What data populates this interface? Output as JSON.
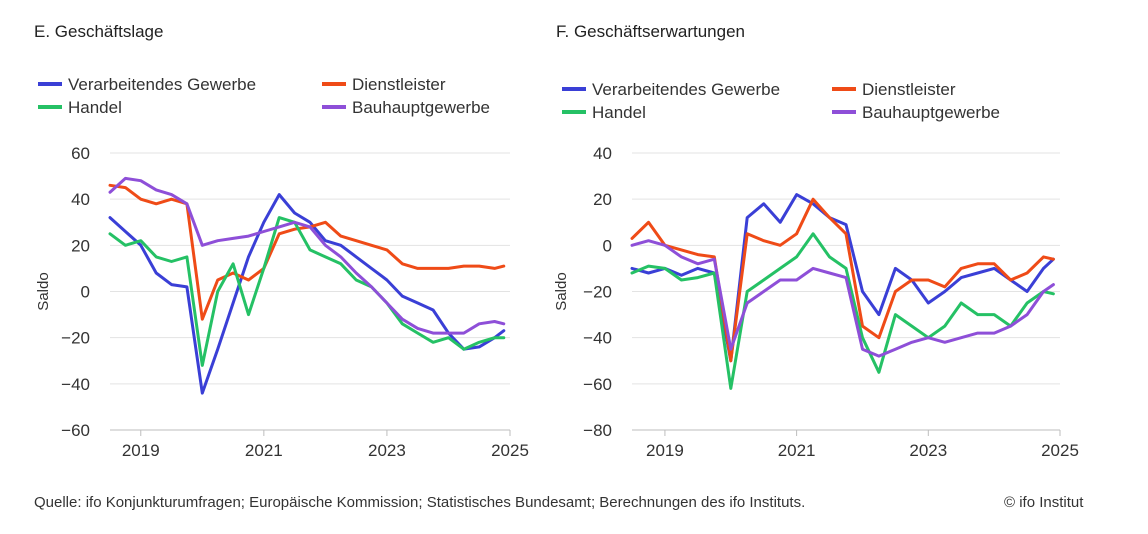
{
  "footer": {
    "source": "Quelle: ifo Konjunkturumfragen; Europäische Kommission; Statistisches Bundesamt; Berechnungen des ifo Instituts.",
    "copyright": "© ifo Institut"
  },
  "colors": {
    "verarbeitendes": "#3a3fd6",
    "dienstleister": "#ef4b17",
    "handel": "#25c165",
    "bau": "#8e4fd8",
    "grid": "#e3e3e3"
  },
  "chart_data": [
    {
      "id": "E",
      "type": "line",
      "title": "E. Geschäftslage",
      "xlabel": "",
      "ylabel": "Saldo",
      "xlim": [
        2018.5,
        2025.0
      ],
      "ylim": [
        -60,
        60
      ],
      "yticks": [
        60,
        40,
        20,
        0,
        -20,
        -40,
        -60
      ],
      "xticks": [
        2019,
        2021,
        2023,
        2025
      ],
      "xtick_labels": [
        "2019",
        "2021",
        "2023",
        "2025"
      ],
      "grid": true,
      "legend_position": "top",
      "legend": [
        "Verarbeitendes Gewerbe",
        "Dienstleister",
        "Handel",
        "Bauhauptgewerbe"
      ],
      "x": [
        2018.5,
        2018.75,
        2019.0,
        2019.25,
        2019.5,
        2019.75,
        2020.0,
        2020.25,
        2020.5,
        2020.75,
        2021.0,
        2021.25,
        2021.5,
        2021.75,
        2022.0,
        2022.25,
        2022.5,
        2022.75,
        2023.0,
        2023.25,
        2023.5,
        2023.75,
        2024.0,
        2024.25,
        2024.5,
        2024.75,
        2024.9
      ],
      "series": [
        {
          "name": "Verarbeitendes Gewerbe",
          "color_key": "verarbeitendes",
          "values": [
            32,
            26,
            20,
            8,
            3,
            2,
            -44,
            -25,
            -5,
            15,
            30,
            42,
            34,
            30,
            22,
            20,
            15,
            10,
            5,
            -2,
            -5,
            -8,
            -18,
            -25,
            -24,
            -20,
            -17
          ]
        },
        {
          "name": "Dienstleister",
          "color_key": "dienstleister",
          "values": [
            46,
            45,
            40,
            38,
            40,
            38,
            -12,
            5,
            8,
            5,
            10,
            25,
            27,
            28,
            30,
            24,
            22,
            20,
            18,
            12,
            10,
            10,
            10,
            11,
            11,
            10,
            11
          ]
        },
        {
          "name": "Handel",
          "color_key": "handel",
          "values": [
            25,
            20,
            22,
            15,
            13,
            15,
            -32,
            0,
            12,
            -10,
            10,
            32,
            30,
            18,
            15,
            12,
            5,
            2,
            -5,
            -14,
            -18,
            -22,
            -20,
            -25,
            -22,
            -20,
            -20
          ]
        },
        {
          "name": "Bauhauptgewerbe",
          "color_key": "bau",
          "values": [
            43,
            49,
            48,
            44,
            42,
            38,
            20,
            22,
            23,
            24,
            26,
            28,
            30,
            28,
            20,
            15,
            8,
            2,
            -5,
            -12,
            -16,
            -18,
            -18,
            -18,
            -14,
            -13,
            -14
          ]
        }
      ]
    },
    {
      "id": "F",
      "type": "line",
      "title": "F. Geschäftserwartungen",
      "xlabel": "",
      "ylabel": "Saldo",
      "xlim": [
        2018.5,
        2025.0
      ],
      "ylim": [
        -80,
        40
      ],
      "yticks": [
        40,
        20,
        0,
        -20,
        -40,
        -60,
        -80
      ],
      "xticks": [
        2019,
        2021,
        2023,
        2025
      ],
      "xtick_labels": [
        "2019",
        "2021",
        "2023",
        "2025"
      ],
      "grid": true,
      "legend_position": "top",
      "legend": [
        "Verarbeitendes Gewerbe",
        "Dienstleister",
        "Handel",
        "Bauhauptgewerbe"
      ],
      "x": [
        2018.5,
        2018.75,
        2019.0,
        2019.25,
        2019.5,
        2019.75,
        2020.0,
        2020.25,
        2020.5,
        2020.75,
        2021.0,
        2021.25,
        2021.5,
        2021.75,
        2022.0,
        2022.25,
        2022.5,
        2022.75,
        2023.0,
        2023.25,
        2023.5,
        2023.75,
        2024.0,
        2024.25,
        2024.5,
        2024.75,
        2024.9
      ],
      "series": [
        {
          "name": "Verarbeitendes Gewerbe",
          "color_key": "verarbeitendes",
          "values": [
            -10,
            -12,
            -10,
            -13,
            -10,
            -12,
            -50,
            12,
            18,
            10,
            22,
            18,
            12,
            9,
            -20,
            -30,
            -10,
            -15,
            -25,
            -20,
            -14,
            -12,
            -10,
            -15,
            -20,
            -10,
            -6
          ]
        },
        {
          "name": "Dienstleister",
          "color_key": "dienstleister",
          "values": [
            3,
            10,
            0,
            -2,
            -4,
            -5,
            -50,
            5,
            2,
            0,
            5,
            20,
            12,
            5,
            -35,
            -40,
            -20,
            -15,
            -15,
            -18,
            -10,
            -8,
            -8,
            -15,
            -12,
            -5,
            -6
          ]
        },
        {
          "name": "Handel",
          "color_key": "handel",
          "values": [
            -12,
            -9,
            -10,
            -15,
            -14,
            -12,
            -62,
            -20,
            -15,
            -10,
            -5,
            5,
            -5,
            -10,
            -40,
            -55,
            -30,
            -35,
            -40,
            -35,
            -25,
            -30,
            -30,
            -35,
            -25,
            -20,
            -21
          ]
        },
        {
          "name": "Bauhauptgewerbe",
          "color_key": "bau",
          "values": [
            0,
            2,
            0,
            -5,
            -8,
            -6,
            -45,
            -25,
            -20,
            -15,
            -15,
            -10,
            -12,
            -14,
            -45,
            -48,
            -45,
            -42,
            -40,
            -42,
            -40,
            -38,
            -38,
            -35,
            -30,
            -20,
            -17
          ]
        }
      ]
    }
  ]
}
